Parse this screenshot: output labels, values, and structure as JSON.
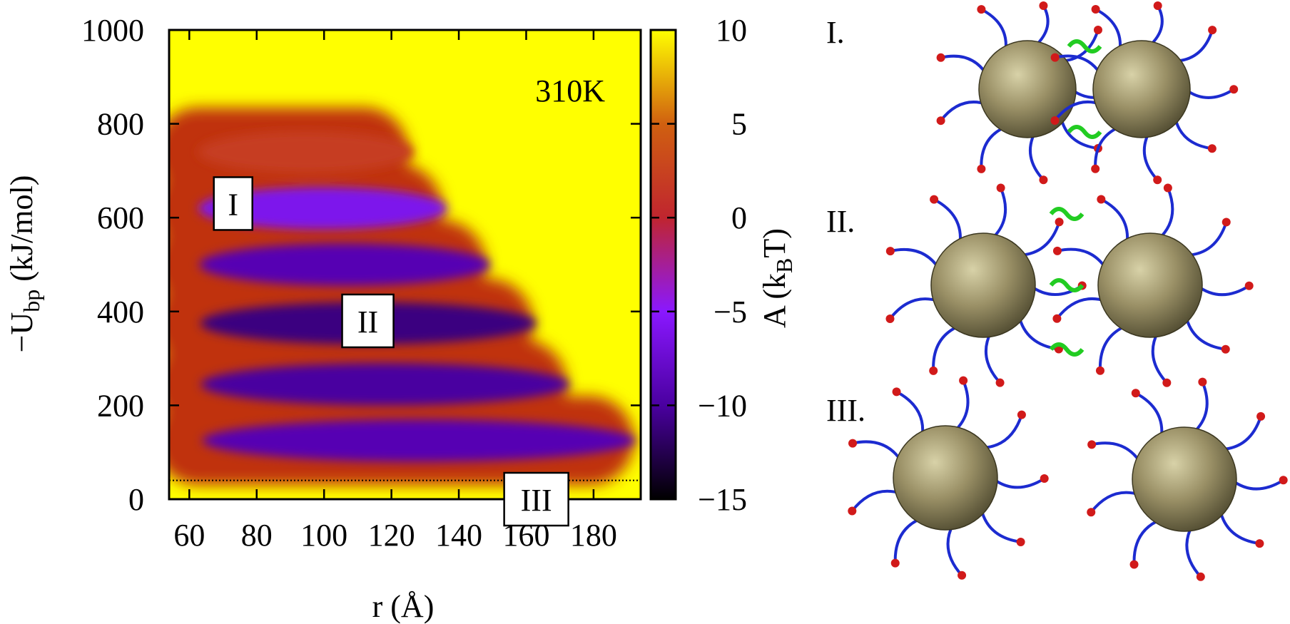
{
  "chart_data": {
    "type": "heatmap",
    "xlabel": "r (Å)",
    "ylabel": "−U",
    "ylabel_sub": "bp",
    "ylabel_unit": " (kJ/mol)",
    "xlim": [
      54,
      194
    ],
    "ylim": [
      0,
      1000
    ],
    "x_ticks": [
      60,
      80,
      100,
      120,
      140,
      160,
      180
    ],
    "y_ticks": [
      0,
      200,
      400,
      600,
      800,
      1000
    ],
    "annotation": "310K",
    "reference_line_y": 40,
    "colorbar": {
      "label": "A (k",
      "label_sub": "B",
      "label_end": "T)",
      "range": [
        -15,
        10
      ],
      "ticks": [
        10,
        5,
        0,
        -5,
        -10,
        -15
      ],
      "tick_labels": [
        "10",
        "5",
        "0",
        "−5",
        "−10",
        "−15"
      ],
      "colors": [
        "#000000",
        "#4a00a0",
        "#8a18ff",
        "#c0252f",
        "#d06010",
        "#ffff00"
      ]
    },
    "regions": [
      {
        "label": "I",
        "x": 73,
        "y": 630
      },
      {
        "label": "II",
        "x": 113,
        "y": 380
      },
      {
        "label": "III",
        "x": 163,
        "y": 0
      }
    ],
    "free_energy_bands": [
      {
        "y_center": 125,
        "x_min": 58,
        "x_max": 192,
        "well_x": 100,
        "well_value": -9
      },
      {
        "y_center": 245,
        "x_min": 58,
        "x_max": 172,
        "well_x": 95,
        "well_value": -10
      },
      {
        "y_center": 375,
        "x_min": 58,
        "x_max": 162,
        "well_x": 92,
        "well_value": -11
      },
      {
        "y_center": 500,
        "x_min": 58,
        "x_max": 148,
        "well_x": 85,
        "well_value": -9
      },
      {
        "y_center": 620,
        "x_min": 58,
        "x_max": 135,
        "well_x": 80,
        "well_value": -6
      },
      {
        "y_center": 740,
        "x_min": 58,
        "x_max": 125,
        "well_x": 80,
        "well_value": 2
      }
    ],
    "panels": [
      {
        "label": "I."
      },
      {
        "label": "II."
      },
      {
        "label": "III."
      }
    ]
  }
}
